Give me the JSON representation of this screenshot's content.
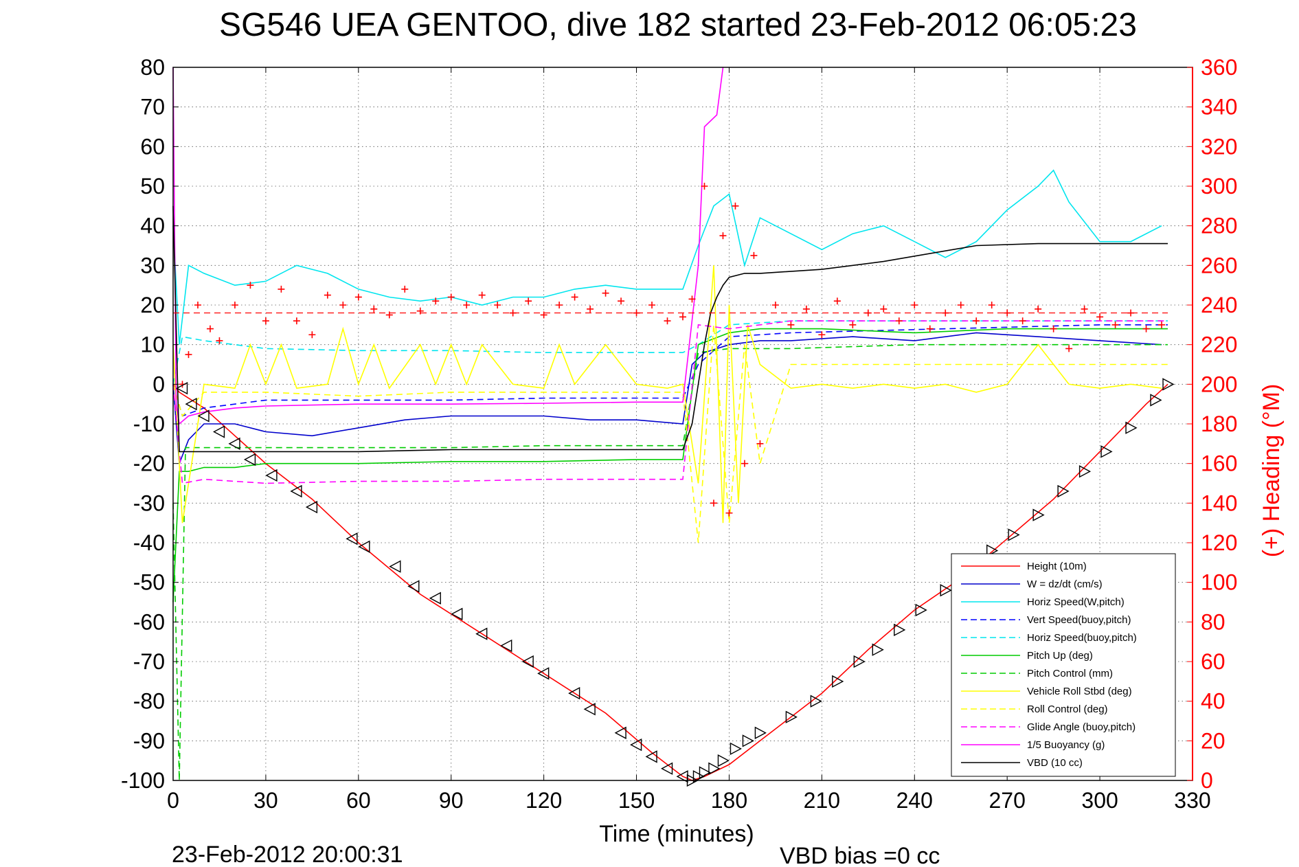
{
  "chart_data": {
    "type": "line",
    "title": "SG546 UEA GENTOO, dive 182 started 23-Feb-2012 06:05:23",
    "xlabel": "Time (minutes)",
    "ylabel": "",
    "y2label": "(+) Heading (°M)",
    "xlim": [
      0,
      330
    ],
    "ylim": [
      -100,
      80
    ],
    "y2lim": [
      0,
      360
    ],
    "x_ticks": [
      "0",
      "30",
      "60",
      "90",
      "120",
      "150",
      "180",
      "210",
      "240",
      "270",
      "300",
      "330"
    ],
    "y_ticks": [
      "80",
      "70",
      "60",
      "50",
      "40",
      "30",
      "20",
      "10",
      "0",
      "-10",
      "-20",
      "-30",
      "-40",
      "-50",
      "-60",
      "-70",
      "-80",
      "-90",
      "-100"
    ],
    "y2_ticks": [
      "360",
      "340",
      "320",
      "300",
      "280",
      "260",
      "240",
      "220",
      "200",
      "180",
      "160",
      "140",
      "120",
      "100",
      "80",
      "60",
      "40",
      "20",
      "0"
    ],
    "grid": true,
    "legend_position": "bottom-right",
    "footer_left": "23-Feb-2012 20:00:31",
    "footer_right": "VBD bias =0 cc",
    "series": [
      {
        "name": "Height (10m)",
        "color": "#ff0000",
        "style": "solid",
        "x": [
          0,
          2,
          10,
          20,
          30,
          45,
          60,
          80,
          100,
          120,
          140,
          155,
          165,
          168,
          172,
          180,
          190,
          200,
          210,
          225,
          240,
          255,
          270,
          285,
          300,
          315,
          322
        ],
        "y": [
          0,
          -2,
          -6,
          -13,
          -20,
          -29,
          -40,
          -53,
          -63,
          -73,
          -83,
          -93,
          -99,
          -100,
          -99,
          -96,
          -90,
          -84,
          -78,
          -67,
          -57,
          -49,
          -39,
          -29,
          -17,
          -5,
          0
        ]
      },
      {
        "name": "W = dz/dt (cm/s)",
        "color": "#0000cc",
        "style": "solid",
        "x": [
          0,
          2,
          5,
          10,
          20,
          30,
          45,
          60,
          75,
          90,
          105,
          120,
          135,
          150,
          165,
          168,
          172,
          180,
          190,
          200,
          220,
          240,
          260,
          280,
          300,
          320
        ],
        "y": [
          0,
          -20,
          -14,
          -10,
          -10,
          -12,
          -13,
          -11,
          -9,
          -8,
          -8,
          -8,
          -9,
          -9,
          -10,
          5,
          8,
          10,
          11,
          11,
          12,
          11,
          13,
          12,
          11,
          10
        ]
      },
      {
        "name": "Horiz Speed(W,pitch)",
        "color": "#00e5ee",
        "style": "solid",
        "x": [
          0,
          2,
          5,
          10,
          20,
          30,
          40,
          50,
          60,
          70,
          80,
          90,
          100,
          110,
          120,
          130,
          140,
          150,
          165,
          170,
          175,
          180,
          185,
          190,
          200,
          210,
          220,
          230,
          240,
          250,
          260,
          270,
          280,
          285,
          290,
          300,
          310,
          320
        ],
        "y": [
          40,
          10,
          30,
          28,
          25,
          26,
          30,
          28,
          24,
          22,
          21,
          22,
          20,
          22,
          22,
          24,
          25,
          24,
          24,
          35,
          45,
          48,
          30,
          42,
          38,
          34,
          38,
          40,
          36,
          32,
          36,
          44,
          50,
          54,
          46,
          36,
          36,
          40
        ]
      },
      {
        "name": "Vert Speed(buoy,pitch)",
        "color": "#0000ff",
        "style": "dashed",
        "x": [
          0,
          3,
          10,
          30,
          60,
          90,
          120,
          150,
          165,
          170,
          180,
          200,
          250,
          300,
          322
        ],
        "y": [
          0,
          -8,
          -6,
          -4,
          -4,
          -4,
          -3.5,
          -3.5,
          -3.5,
          5,
          12,
          13,
          14,
          15,
          15
        ]
      },
      {
        "name": "Horiz Speed(buoy,pitch)",
        "color": "#00e5ee",
        "style": "dashed",
        "x": [
          0,
          3,
          10,
          30,
          60,
          90,
          120,
          150,
          165,
          170,
          180,
          200,
          250,
          300,
          322
        ],
        "y": [
          0,
          12,
          11,
          9,
          8.5,
          8.5,
          8,
          8,
          8,
          10,
          15,
          16,
          16,
          16,
          16
        ]
      },
      {
        "name": "Pitch Up (deg)",
        "color": "#00cc00",
        "style": "solid",
        "x": [
          0,
          2,
          5,
          10,
          20,
          30,
          60,
          90,
          120,
          150,
          165,
          170,
          180,
          190,
          210,
          240,
          270,
          300,
          322
        ],
        "y": [
          -55,
          -22,
          -22,
          -21,
          -21,
          -20,
          -20,
          -19.5,
          -19.5,
          -19,
          -19,
          10,
          13,
          14,
          14,
          13,
          14,
          14,
          14
        ]
      },
      {
        "name": "Pitch Control (mm)",
        "color": "#00cc00",
        "style": "dashed",
        "x": [
          0,
          2,
          4,
          10,
          30,
          60,
          90,
          120,
          150,
          165,
          170,
          180,
          200,
          240,
          280,
          322
        ],
        "y": [
          -30,
          -100,
          -16,
          -16,
          -16,
          -16,
          -16,
          -15.5,
          -15.5,
          -15.5,
          8,
          9,
          9,
          10,
          10,
          10
        ]
      },
      {
        "name": "Vehicle Roll Stbd (deg)",
        "color": "#ffff00",
        "style": "solid",
        "x": [
          0,
          3,
          10,
          20,
          25,
          30,
          35,
          40,
          50,
          55,
          60,
          65,
          70,
          80,
          85,
          90,
          95,
          100,
          110,
          120,
          125,
          130,
          140,
          150,
          160,
          165,
          170,
          175,
          178,
          180,
          183,
          186,
          190,
          200,
          210,
          220,
          230,
          240,
          250,
          260,
          270,
          280,
          290,
          300,
          310,
          320
        ],
        "y": [
          10,
          -35,
          0,
          -1,
          10,
          0,
          10,
          -1,
          0,
          14,
          0,
          10,
          -1,
          10,
          0,
          10,
          0,
          10,
          0,
          -1,
          10,
          0,
          10,
          0,
          -1,
          0,
          -25,
          30,
          -35,
          20,
          -30,
          15,
          5,
          -1,
          0,
          -1,
          0,
          -1,
          0,
          -2,
          0,
          10,
          0,
          -1,
          0,
          -1
        ]
      },
      {
        "name": "Roll Control (deg)",
        "color": "#ffff00",
        "style": "dashed",
        "x": [
          0,
          3,
          10,
          30,
          60,
          90,
          120,
          150,
          165,
          170,
          175,
          180,
          185,
          190,
          200,
          230,
          260,
          290,
          322
        ],
        "y": [
          0,
          -8,
          -2,
          -2,
          -3,
          -2,
          -2,
          -2,
          -2,
          -40,
          15,
          -35,
          10,
          -20,
          5,
          5,
          5,
          5,
          5
        ]
      },
      {
        "name": "Glide Angle (buoy,pitch)",
        "color": "#ff00ff",
        "style": "dashed",
        "x": [
          0,
          3,
          10,
          30,
          60,
          90,
          120,
          150,
          165,
          170,
          180,
          200,
          250,
          300,
          322
        ],
        "y": [
          0,
          -25,
          -24,
          -25,
          -24.5,
          -24.5,
          -24,
          -24,
          -24,
          15,
          14,
          16,
          16,
          16,
          16
        ]
      },
      {
        "name": "1/5 Buoyancy (g)",
        "color": "#ff00ff",
        "style": "solid",
        "x": [
          0,
          1,
          2,
          5,
          10,
          20,
          30,
          60,
          90,
          120,
          150,
          165,
          170,
          172,
          176,
          178
        ],
        "y": [
          80,
          -5,
          -10,
          -8,
          -7,
          -6,
          -5.5,
          -5,
          -5,
          -4.8,
          -4.5,
          -4.5,
          30,
          65,
          68,
          80
        ]
      },
      {
        "name": "VBD (10 cc)",
        "color": "#000000",
        "style": "solid",
        "x": [
          0,
          2,
          10,
          30,
          60,
          90,
          120,
          150,
          165,
          168,
          170,
          172,
          174,
          176,
          178,
          180,
          185,
          190,
          210,
          230,
          260,
          280,
          300,
          310,
          322
        ],
        "y": [
          45,
          -17,
          -17,
          -17,
          -17,
          -16.5,
          -16.5,
          -16.5,
          -16.5,
          -10,
          0,
          10,
          18,
          22,
          25,
          27,
          28,
          28,
          29,
          31,
          35,
          35.5,
          35.5,
          35.5,
          35.5
        ]
      }
    ],
    "heading": {
      "name": "(+) Heading (°M)",
      "color": "#ff0000",
      "marker": "+",
      "mean": 236,
      "x": [
        3,
        5,
        8,
        12,
        15,
        20,
        25,
        30,
        35,
        40,
        45,
        50,
        55,
        60,
        65,
        70,
        75,
        80,
        85,
        90,
        95,
        100,
        105,
        110,
        115,
        120,
        125,
        130,
        135,
        140,
        145,
        150,
        155,
        160,
        165,
        168,
        172,
        175,
        178,
        180,
        182,
        185,
        188,
        190,
        195,
        200,
        205,
        210,
        215,
        220,
        225,
        230,
        235,
        240,
        245,
        250,
        255,
        260,
        265,
        270,
        275,
        280,
        285,
        290,
        295,
        300,
        305,
        310,
        315,
        320
      ],
      "y": [
        200,
        215,
        240,
        228,
        222,
        240,
        250,
        232,
        248,
        232,
        225,
        245,
        240,
        244,
        238,
        235,
        248,
        237,
        242,
        244,
        240,
        245,
        240,
        236,
        242,
        235,
        240,
        244,
        238,
        246,
        242,
        236,
        240,
        232,
        234,
        243,
        300,
        140,
        275,
        135,
        290,
        160,
        265,
        170,
        240,
        230,
        238,
        225,
        242,
        230,
        236,
        238,
        232,
        240,
        228,
        236,
        240,
        232,
        240,
        236,
        232,
        238,
        228,
        218,
        238,
        234,
        230,
        236,
        228,
        230
      ]
    },
    "triangles": {
      "color": "#000000",
      "x": [
        3,
        6,
        10,
        15,
        20,
        25,
        32,
        40,
        45,
        58,
        62,
        72,
        78,
        85,
        92,
        100,
        108,
        115,
        120,
        130,
        135,
        145,
        150,
        155,
        160,
        165,
        168,
        170,
        172,
        175,
        178,
        182,
        186,
        190,
        200,
        208,
        215,
        222,
        228,
        235,
        242,
        250,
        258,
        265,
        272,
        280,
        288,
        295,
        302,
        310,
        318,
        322
      ],
      "y": [
        -1,
        -5,
        -8,
        -12,
        -15,
        -19,
        -23,
        -27,
        -31,
        -39,
        -41,
        -46,
        -51,
        -54,
        -58,
        -63,
        -66,
        -70,
        -73,
        -78,
        -82,
        -88,
        -91,
        -94,
        -97,
        -99,
        -100,
        -99,
        -98,
        -97,
        -95,
        -92,
        -90,
        -88,
        -84,
        -80,
        -75,
        -70,
        -67,
        -62,
        -57,
        -52,
        -47,
        -42,
        -38,
        -33,
        -27,
        -22,
        -17,
        -11,
        -4,
        0
      ]
    }
  }
}
